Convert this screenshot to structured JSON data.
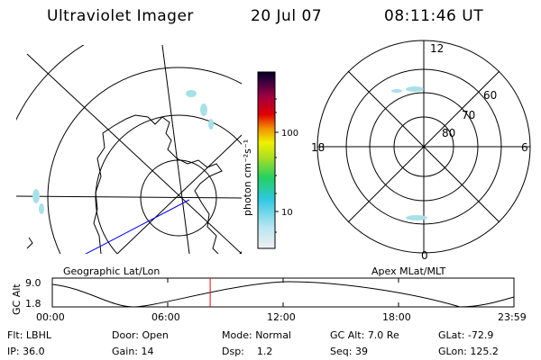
{
  "header": {
    "title": "Ultraviolet Imager",
    "date": "20 Jul 07",
    "time": "08:11:46 UT"
  },
  "colorbar": {
    "label": "photon cm⁻²s⁻¹",
    "ticks": [
      "100",
      "10"
    ]
  },
  "polar_plot": {
    "labels": {
      "noon": "12",
      "midnight": "0",
      "dusk": "18",
      "dawn": "6",
      "lat60": "60",
      "lat70": "70",
      "lat80": "80"
    }
  },
  "panel_titles": {
    "left": "Geographic Lat/Lon",
    "right": "Apex MLat/MLT"
  },
  "orbit": {
    "axis_label": "GC Alt",
    "y_ticks": [
      "9.0",
      "1.8"
    ],
    "x_ticks": [
      "00:00",
      "06:00",
      "12:00",
      "18:00",
      "23:59"
    ],
    "current_time_fraction": 0.342
  },
  "status": {
    "row1": [
      {
        "label": "Flt:",
        "value": "LBHL"
      },
      {
        "label": "Door:",
        "value": "Open"
      },
      {
        "label": "Mode:",
        "value": "Normal"
      },
      {
        "label": "GC Alt:",
        "value": "7.0 Re"
      },
      {
        "label": "GLat:",
        "value": "-72.9"
      }
    ],
    "row2": [
      {
        "label": "IP:",
        "value": "36.0"
      },
      {
        "label": "Gain:",
        "value": "14"
      },
      {
        "label": "Dsp:",
        "value": "1.2"
      },
      {
        "label": "Seq:",
        "value": "39"
      },
      {
        "label": "GLon:",
        "value": "125.2"
      }
    ]
  },
  "colors": {
    "marker": "#ff0000",
    "track": "#0000ff",
    "aurora": "#a8e0e8"
  }
}
